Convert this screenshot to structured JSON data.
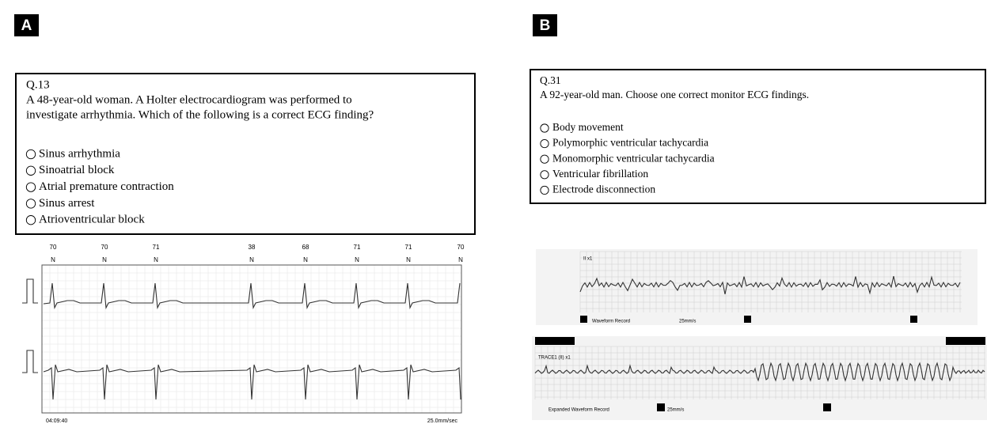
{
  "panels": [
    {
      "label": "A",
      "question": {
        "number": "Q.13",
        "lines": [
          "A 48-year-old woman. A Holter electrocardiogram was performed to",
          "investigate arrhythmia. Which of the following  is a correct ECG finding?"
        ],
        "options": [
          "Sinus arrhythmia",
          "Sinoatrial  block",
          "Atrial  premature contraction",
          "Sinus arrest",
          "Atrioventricular  block"
        ]
      },
      "ecg": {
        "beats": [
          {
            "rate": 70,
            "type": "N"
          },
          {
            "rate": 70,
            "type": "N"
          },
          {
            "rate": 71,
            "type": "N"
          },
          {
            "rate": 38,
            "type": "N"
          },
          {
            "rate": 68,
            "type": "N"
          },
          {
            "rate": 71,
            "type": "N"
          },
          {
            "rate": 71,
            "type": "N"
          },
          {
            "rate": 70,
            "type": "N"
          }
        ],
        "time": "04:09:40",
        "speed": "25.0mm/sec"
      }
    },
    {
      "label": "B",
      "question": {
        "number": "Q.31",
        "lines": [
          "A 92-year-old man. Choose one correct monitor ECG  findings."
        ],
        "options": [
          "Body movement",
          "Polymorphic ventricular tachycardia",
          "Monomorphic ventricular tachycardia",
          "Ventricular  fibrillation",
          "Electrode  disconnection"
        ]
      },
      "ecg": {
        "strip1": {
          "lead": "II x1",
          "record": "Waveform Record",
          "speed": "25mm/s"
        },
        "strip2": {
          "lead": "TRACE1 (II) x1",
          "record": "Expanded Waveform Record",
          "speed": "25mm/s"
        }
      }
    }
  ]
}
